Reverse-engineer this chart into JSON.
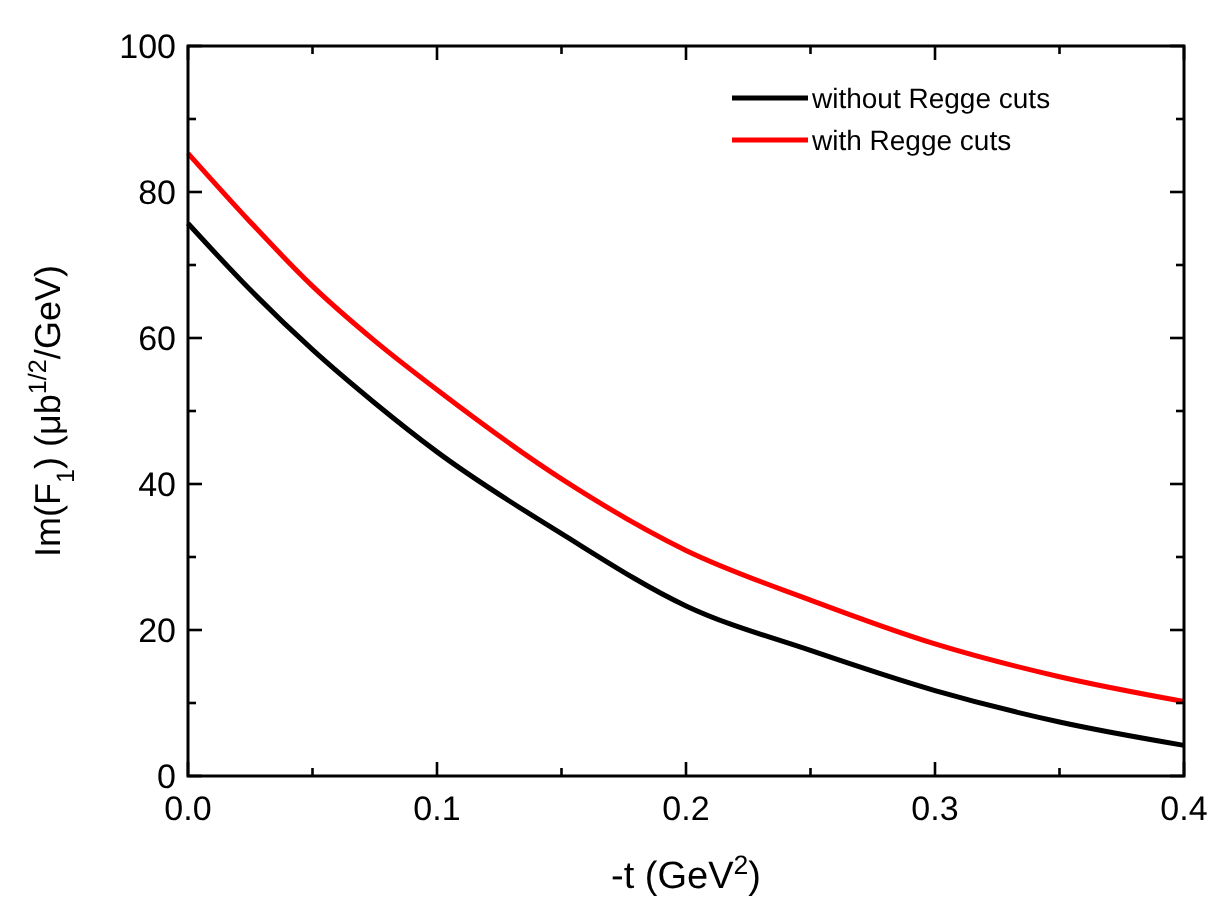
{
  "chart_data": {
    "type": "line",
    "xlabel": "-t (GeV$^{2}$)",
    "ylabel": "Im(F$_{1}$) (μb$^{1/2}$/GeV)",
    "x": [
      0,
      0.025,
      0.05,
      0.075,
      0.1,
      0.15,
      0.2,
      0.25,
      0.3,
      0.35,
      0.4
    ],
    "series": [
      {
        "name": "without Regge cuts",
        "color": "#000000",
        "values": [
          75.7,
          66.6,
          58.4,
          51.1,
          44.4,
          33.2,
          23.3,
          17.2,
          11.7,
          7.4,
          4.2
        ]
      },
      {
        "name": "with Regge cuts",
        "color": "#ff0000",
        "values": [
          85.3,
          75.9,
          67.1,
          59.6,
          52.9,
          40.7,
          30.9,
          24.1,
          18.1,
          13.6,
          10.2
        ]
      }
    ],
    "xlim": [
      0,
      0.4
    ],
    "ylim": [
      0,
      100
    ],
    "xticks": [
      {
        "value": 0,
        "label": "0.0"
      },
      {
        "value": 0.05,
        "label": null
      },
      0.1,
      {
        "value": 0.15,
        "label": null
      },
      0.2,
      {
        "value": 0.25,
        "label": null
      },
      0.3,
      {
        "value": 0.35,
        "label": null
      },
      0.4
    ],
    "yticks": [
      0,
      {
        "value": 10,
        "label": null
      },
      20,
      {
        "value": 30,
        "label": null
      },
      40,
      {
        "value": 50,
        "label": null
      },
      60,
      {
        "value": 70,
        "label": null
      },
      80,
      {
        "value": 90,
        "label": null
      },
      100
    ],
    "legend": "top right",
    "grid": false,
    "marker": "none",
    "line_style": "solid"
  }
}
